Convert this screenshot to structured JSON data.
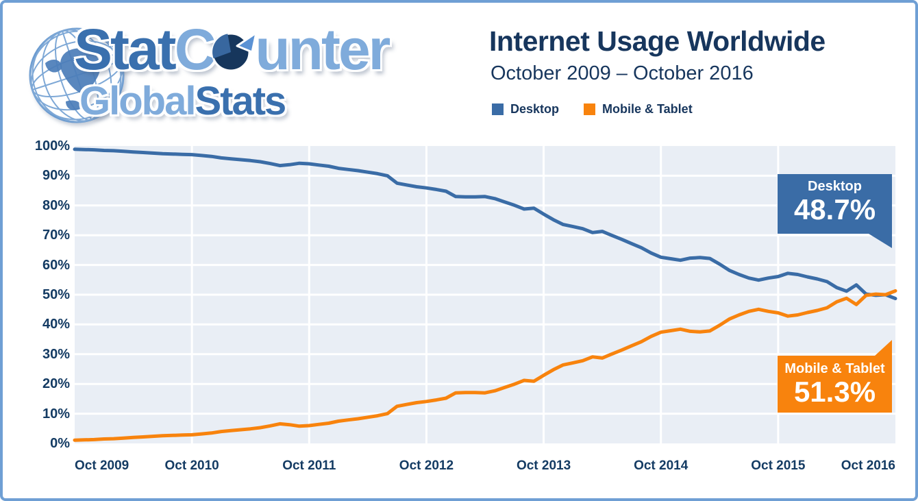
{
  "logo": {
    "line1_dark": "Stat",
    "line1_c": "C",
    "line1_rest": "unter",
    "line2_light": "Global",
    "line2_dark": "Stats"
  },
  "header": {
    "title": "Internet Usage Worldwide",
    "subtitle": "October 2009 – October 2016"
  },
  "legend": [
    {
      "label": "Desktop",
      "color": "#3a6ca6"
    },
    {
      "label": "Mobile & Tablet",
      "color": "#f8830d"
    }
  ],
  "callouts": {
    "desktop": {
      "label": "Desktop",
      "value": "48.7%",
      "color": "#3a6ca6"
    },
    "mobile": {
      "label": "Mobile & Tablet",
      "value": "51.3%",
      "color": "#f8830d"
    }
  },
  "chart_data": {
    "type": "line",
    "title": "Internet Usage Worldwide",
    "subtitle": "October 2009 – October 2016",
    "x_interval": "monthly",
    "x_start": "Oct 2009",
    "x_end": "Oct 2016",
    "x_tick_labels": [
      "Oct 2009",
      "Oct 2010",
      "Oct 2011",
      "Oct 2012",
      "Oct 2013",
      "Oct 2014",
      "Oct 2015",
      "Oct 2016"
    ],
    "y_tick_labels": [
      "100%",
      "90%",
      "80%",
      "70%",
      "60%",
      "50%",
      "40%",
      "30%",
      "20%",
      "10%",
      "0%"
    ],
    "ylim": [
      0,
      100
    ],
    "grid": true,
    "grid_color": "#ffffff",
    "plot_background": "#e9eef5",
    "legend_position": "top",
    "series": [
      {
        "name": "Desktop",
        "color": "#3a6ca6",
        "end_label": "48.7%",
        "values": [
          98.9,
          98.8,
          98.7,
          98.5,
          98.4,
          98.2,
          98.0,
          97.8,
          97.6,
          97.4,
          97.3,
          97.2,
          97.1,
          96.8,
          96.5,
          96.0,
          95.7,
          95.4,
          95.1,
          94.7,
          94.1,
          93.4,
          93.7,
          94.2,
          94.0,
          93.6,
          93.2,
          92.5,
          92.1,
          91.7,
          91.2,
          90.7,
          90.0,
          87.5,
          86.9,
          86.3,
          85.9,
          85.4,
          84.8,
          83.0,
          82.9,
          82.9,
          83.0,
          82.3,
          81.2,
          80.1,
          78.8,
          79.1,
          77.1,
          75.2,
          73.6,
          72.9,
          72.2,
          70.9,
          71.3,
          69.9,
          68.6,
          67.2,
          65.8,
          64.0,
          62.6,
          62.1,
          61.6,
          62.3,
          62.5,
          62.2,
          60.3,
          58.2,
          56.8,
          55.6,
          54.9,
          55.6,
          56.1,
          57.2,
          56.8,
          56.0,
          55.3,
          54.4,
          52.4,
          51.2,
          53.3,
          50.2,
          49.8,
          50.0,
          48.7
        ]
      },
      {
        "name": "Mobile & Tablet",
        "color": "#f8830d",
        "end_label": "51.3%",
        "values": [
          1.1,
          1.2,
          1.3,
          1.5,
          1.6,
          1.8,
          2.0,
          2.2,
          2.4,
          2.6,
          2.7,
          2.8,
          2.9,
          3.2,
          3.5,
          4.0,
          4.3,
          4.6,
          4.9,
          5.3,
          5.9,
          6.6,
          6.3,
          5.8,
          6.0,
          6.4,
          6.8,
          7.5,
          7.9,
          8.3,
          8.8,
          9.3,
          10.0,
          12.5,
          13.1,
          13.7,
          14.1,
          14.6,
          15.2,
          17.0,
          17.1,
          17.1,
          17.0,
          17.7,
          18.8,
          19.9,
          21.2,
          20.9,
          22.9,
          24.8,
          26.4,
          27.1,
          27.8,
          29.1,
          28.7,
          30.1,
          31.4,
          32.8,
          34.2,
          36.0,
          37.4,
          37.9,
          38.4,
          37.7,
          37.5,
          37.8,
          39.7,
          41.8,
          43.2,
          44.4,
          45.1,
          44.4,
          43.9,
          42.8,
          43.2,
          44.0,
          44.7,
          45.6,
          47.6,
          48.8,
          46.7,
          49.8,
          50.2,
          50.0,
          51.3
        ]
      }
    ]
  }
}
